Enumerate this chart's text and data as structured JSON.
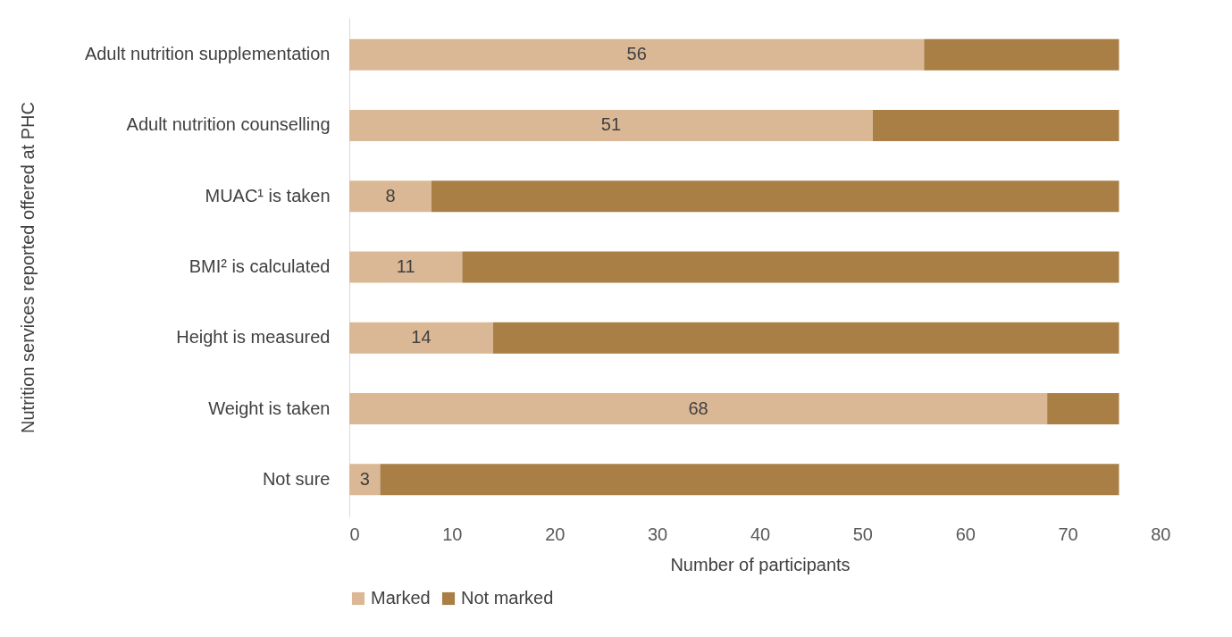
{
  "chart_data": {
    "type": "bar",
    "orientation": "horizontal",
    "stacked": true,
    "xlabel": "Number of participants",
    "ylabel": "Nutrition services reported offered at PHC",
    "categories": [
      "Adult nutrition supplementation",
      "Adult nutrition counselling",
      "MUAC¹ is taken",
      "BMI² is calculated",
      "Height is measured",
      "Weight is taken",
      "Not sure"
    ],
    "series": [
      {
        "name": "Marked",
        "color": "#dbb895",
        "values": [
          56,
          51,
          8,
          11,
          14,
          68,
          3
        ],
        "value_labels": [
          "56",
          "51",
          "8",
          "11",
          "14",
          "68",
          "3"
        ]
      },
      {
        "name": "Not marked",
        "color": "#a97f46",
        "values": [
          19,
          24,
          67,
          64,
          61,
          7,
          72
        ]
      }
    ],
    "xlim": [
      0,
      80
    ],
    "xticks": [
      0,
      10,
      20,
      30,
      40,
      50,
      60,
      70,
      80
    ],
    "grid": false,
    "legend": "bottom"
  }
}
